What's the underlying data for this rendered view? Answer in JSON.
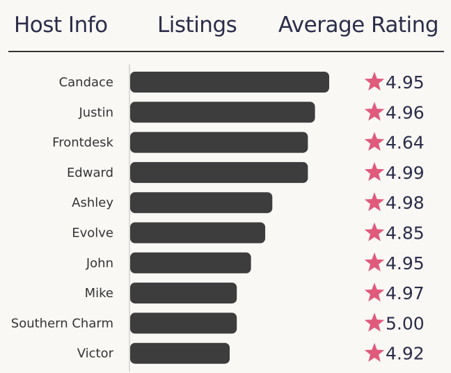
{
  "header": {
    "host_label": "Host Info",
    "listings_label": "Listings",
    "rating_label": "Average Rating"
  },
  "colors": {
    "bar": "#3d3d3d",
    "star": "#e05a7c",
    "header_text": "#2b2d4a",
    "background": "#faf8f5"
  },
  "chart_data": {
    "type": "bar",
    "orientation": "horizontal",
    "categories": [
      "Candace",
      "Justin",
      "Frontdesk",
      "Edward",
      "Ashley",
      "Evolve",
      "John",
      "Mike",
      "Southern Charm",
      "Victor"
    ],
    "values": [
      28,
      26,
      25,
      25,
      20,
      19,
      17,
      15,
      15,
      14
    ],
    "value_unit": "listings (relative)",
    "ratings": [
      "4.95",
      "4.96",
      "4.64",
      "4.99",
      "4.98",
      "4.85",
      "4.95",
      "4.97",
      "5.00",
      "4.92"
    ],
    "rating_icon": "star-icon",
    "xlim": [
      0,
      28
    ],
    "grid": false,
    "legend": "none"
  }
}
